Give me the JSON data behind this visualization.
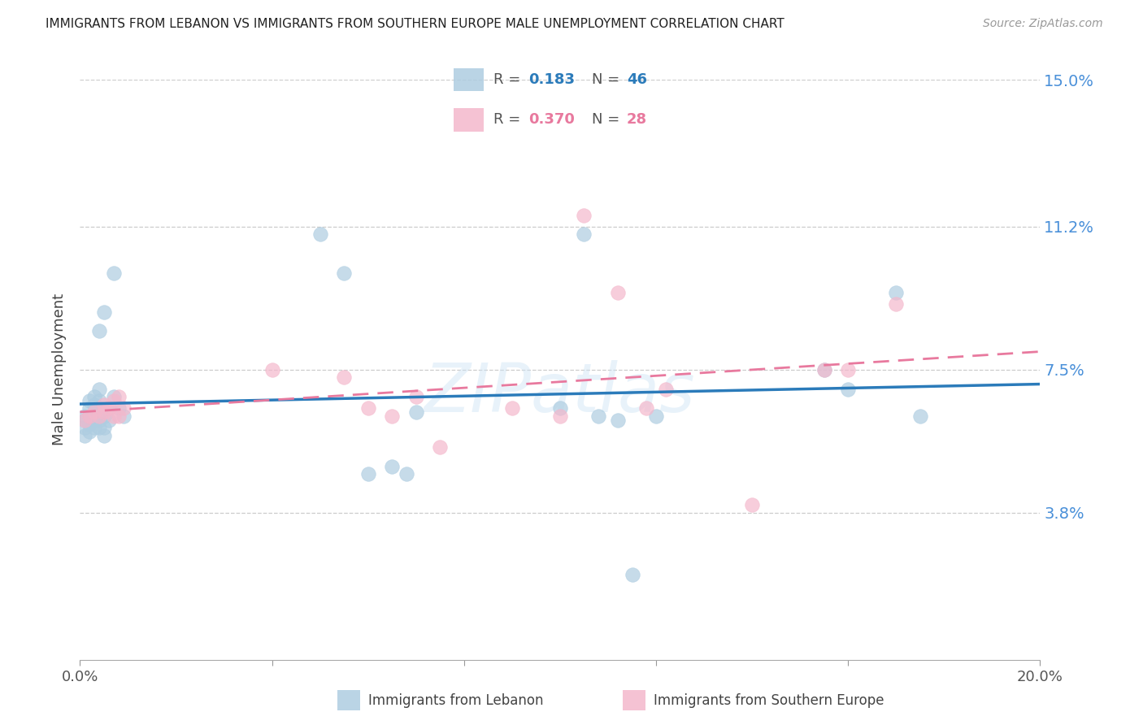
{
  "title": "IMMIGRANTS FROM LEBANON VS IMMIGRANTS FROM SOUTHERN EUROPE MALE UNEMPLOYMENT CORRELATION CHART",
  "source": "Source: ZipAtlas.com",
  "ylabel": "Male Unemployment",
  "xlim": [
    0.0,
    0.2
  ],
  "ylim": [
    0.0,
    0.15
  ],
  "ytick_values": [
    0.038,
    0.075,
    0.112,
    0.15
  ],
  "ytick_labels": [
    "3.8%",
    "7.5%",
    "11.2%",
    "15.0%"
  ],
  "xtick_values": [
    0.0,
    0.04,
    0.08,
    0.12,
    0.16,
    0.2
  ],
  "watermark": "ZIPatlas",
  "r_blue": 0.183,
  "n_blue": 46,
  "r_pink": 0.37,
  "n_pink": 28,
  "color_blue_scatter": "#aecde1",
  "color_pink_scatter": "#f4b8cc",
  "color_blue_line": "#2b7bba",
  "color_pink_line": "#e8799e",
  "color_ytick": "#4a90d9",
  "background_color": "#ffffff",
  "grid_color": "#cccccc",
  "scatter_size": 160,
  "scatter_alpha": 0.7,
  "legend_label_blue": "Immigrants from Lebanon",
  "legend_label_pink": "Immigrants from Southern Europe",
  "blue_x": [
    0.001,
    0.001,
    0.001,
    0.001,
    0.002,
    0.002,
    0.002,
    0.002,
    0.002,
    0.003,
    0.003,
    0.003,
    0.003,
    0.003,
    0.004,
    0.004,
    0.004,
    0.004,
    0.004,
    0.004,
    0.005,
    0.005,
    0.005,
    0.005,
    0.006,
    0.006,
    0.007,
    0.007,
    0.008,
    0.009,
    0.05,
    0.055,
    0.06,
    0.065,
    0.068,
    0.07,
    0.1,
    0.105,
    0.108,
    0.112,
    0.115,
    0.12,
    0.155,
    0.16,
    0.17,
    0.175
  ],
  "blue_y": [
    0.058,
    0.06,
    0.062,
    0.063,
    0.059,
    0.061,
    0.063,
    0.065,
    0.067,
    0.06,
    0.062,
    0.064,
    0.066,
    0.068,
    0.06,
    0.062,
    0.065,
    0.067,
    0.07,
    0.085,
    0.058,
    0.06,
    0.063,
    0.09,
    0.062,
    0.065,
    0.068,
    0.1,
    0.065,
    0.063,
    0.11,
    0.1,
    0.048,
    0.05,
    0.048,
    0.064,
    0.065,
    0.11,
    0.063,
    0.062,
    0.022,
    0.063,
    0.075,
    0.07,
    0.095,
    0.063
  ],
  "pink_x": [
    0.001,
    0.002,
    0.003,
    0.004,
    0.005,
    0.005,
    0.006,
    0.007,
    0.007,
    0.008,
    0.008,
    0.009,
    0.04,
    0.055,
    0.06,
    0.065,
    0.07,
    0.075,
    0.09,
    0.1,
    0.105,
    0.112,
    0.118,
    0.122,
    0.14,
    0.155,
    0.16,
    0.17
  ],
  "pink_y": [
    0.062,
    0.063,
    0.064,
    0.063,
    0.064,
    0.066,
    0.065,
    0.063,
    0.067,
    0.063,
    0.068,
    0.065,
    0.075,
    0.073,
    0.065,
    0.063,
    0.068,
    0.055,
    0.065,
    0.063,
    0.115,
    0.095,
    0.065,
    0.07,
    0.04,
    0.075,
    0.075,
    0.092
  ]
}
